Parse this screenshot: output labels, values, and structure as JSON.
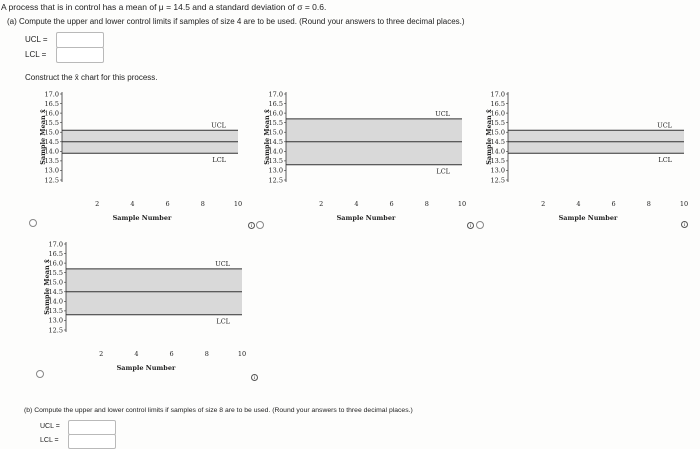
{
  "problem": {
    "statement": "A process that is in control has a mean of μ = 14.5 and a standard deviation of σ = 0.6.",
    "part_a": "(a) Compute the upper and lower control limits if samples of size 4 are to be used. (Round your answers to three decimal places.)",
    "ucl_label": "UCL =",
    "lcl_label": "LCL =",
    "ucl_value": "",
    "lcl_value": "",
    "construct": "Construct the x̄ chart for this process.",
    "part_b": "(b) Compute the upper and lower control limits if samples of size 8 are to be used. (Round your answers to three decimal places.)",
    "ucl_label_b": "UCL =",
    "lcl_label_b": "LCL =",
    "ucl_value_b": "",
    "lcl_value_b": ""
  },
  "info_glyph": "i",
  "chart_data": [
    {
      "type": "line",
      "name": "option-1",
      "ylabel": "Sample Mean x̄",
      "xlabel": "Sample Number",
      "yticks": [
        "17.0",
        "16.5",
        "16.0",
        "15.5",
        "15.0",
        "14.5",
        "14.0",
        "13.5",
        "13.0",
        "12.5"
      ],
      "ylim": [
        12.5,
        17.0
      ],
      "xticks": [
        "2",
        "4",
        "6",
        "8",
        "10"
      ],
      "xlim": [
        0,
        10
      ],
      "ucl": 15.1,
      "center": 14.5,
      "lcl": 13.9,
      "ucl_label": "UCL",
      "lcl_label": "LCL"
    },
    {
      "type": "line",
      "name": "option-2",
      "ylabel": "Sample Mean x̄",
      "xlabel": "Sample Number",
      "yticks": [
        "17.0",
        "16.5",
        "16.0",
        "15.5",
        "15.0",
        "14.5",
        "14.0",
        "13.5",
        "13.0",
        "12.5"
      ],
      "ylim": [
        12.5,
        17.0
      ],
      "xticks": [
        "2",
        "4",
        "6",
        "8",
        "10"
      ],
      "xlim": [
        0,
        10
      ],
      "ucl": 15.7,
      "center": 14.5,
      "lcl": 13.3,
      "ucl_label": "UCL",
      "lcl_label": "LCL"
    },
    {
      "type": "line",
      "name": "option-3",
      "ylabel": "Sample Mean x̄",
      "xlabel": "Sample Number",
      "yticks": [
        "17.0",
        "16.5",
        "16.0",
        "15.5",
        "15.0",
        "14.5",
        "14.0",
        "13.5",
        "13.0",
        "12.5"
      ],
      "ylim": [
        12.5,
        17.0
      ],
      "xticks": [
        "2",
        "4",
        "6",
        "8",
        "10"
      ],
      "xlim": [
        0,
        10
      ],
      "ucl": 15.1,
      "center": 14.5,
      "lcl": 13.9,
      "ucl_label": "UCL",
      "lcl_label": "LCL"
    },
    {
      "type": "line",
      "name": "option-4",
      "ylabel": "Sample Mean x̄",
      "xlabel": "Sample Number",
      "yticks": [
        "17.0",
        "16.5",
        "16.0",
        "15.5",
        "15.0",
        "14.5",
        "14.0",
        "13.5",
        "13.0",
        "12.5"
      ],
      "ylim": [
        12.5,
        17.0
      ],
      "xticks": [
        "2",
        "4",
        "6",
        "8",
        "10"
      ],
      "xlim": [
        0,
        10
      ],
      "ucl": 15.7,
      "center": 14.5,
      "lcl": 13.3,
      "ucl_label": "UCL",
      "lcl_label": "LCL"
    }
  ]
}
